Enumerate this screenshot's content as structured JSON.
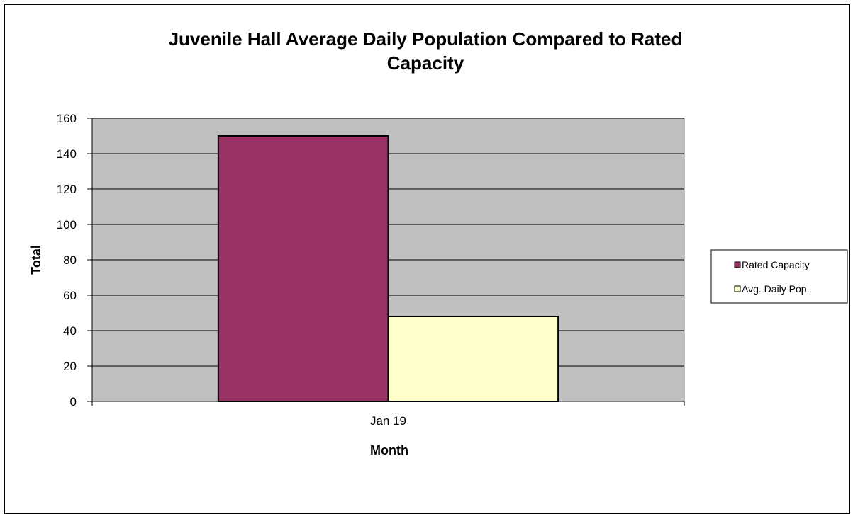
{
  "chart_data": {
    "type": "bar",
    "title_lines": [
      "Juvenile Hall Average Daily Population Compared to Rated",
      "Capacity"
    ],
    "xlabel": "Month",
    "ylabel": "Total",
    "categories": [
      "Jan 19"
    ],
    "series": [
      {
        "name": "Rated Capacity",
        "values": [
          150
        ],
        "color": "#993366"
      },
      {
        "name": "Avg. Daily Pop.",
        "values": [
          48
        ],
        "color": "#FFFFCC"
      }
    ],
    "ylim": [
      0,
      160
    ],
    "yticks": [
      0,
      20,
      40,
      60,
      80,
      100,
      120,
      140,
      160
    ],
    "grid": true,
    "plot_background": "#C0C0C0",
    "legend_position": "right"
  }
}
